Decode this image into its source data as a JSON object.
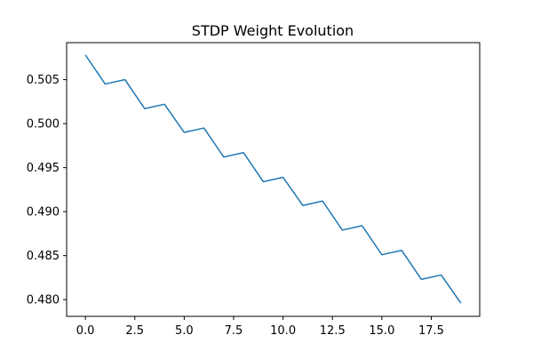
{
  "chart_data": {
    "type": "line",
    "title": "STDP Weight Evolution",
    "xlabel": "",
    "ylabel": "",
    "x": [
      0,
      1,
      2,
      3,
      4,
      5,
      6,
      7,
      8,
      9,
      10,
      11,
      12,
      13,
      14,
      15,
      16,
      17,
      18,
      19
    ],
    "series": [
      {
        "values": [
          0.5078,
          0.5045,
          0.505,
          0.5017,
          0.5022,
          0.499,
          0.4995,
          0.4962,
          0.4967,
          0.4934,
          0.4939,
          0.4907,
          0.4912,
          0.4879,
          0.4884,
          0.4851,
          0.4856,
          0.4823,
          0.4828,
          0.4796
        ],
        "color": "#1f77b4"
      }
    ],
    "xlim": [
      -0.95,
      19.95
    ],
    "ylim": [
      0.4781,
      0.5092
    ],
    "xticks": [
      0.0,
      2.5,
      5.0,
      7.5,
      10.0,
      12.5,
      15.0,
      17.5
    ],
    "xtick_labels": [
      "0.0",
      "2.5",
      "5.0",
      "7.5",
      "10.0",
      "12.5",
      "15.0",
      "17.5"
    ],
    "yticks": [
      0.48,
      0.485,
      0.49,
      0.495,
      0.5,
      0.505
    ],
    "ytick_labels": [
      "0.480",
      "0.485",
      "0.490",
      "0.495",
      "0.500",
      "0.505"
    ],
    "grid": false,
    "legend": "none"
  }
}
